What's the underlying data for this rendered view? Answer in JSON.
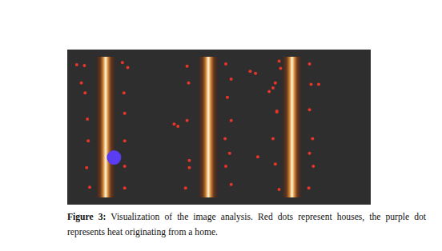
{
  "figure": {
    "label": "Figure 3:",
    "caption": "Visualization of the image analysis. Red dots represent houses, the purple dot represents heat originating from a home."
  },
  "chart_data": {
    "type": "scatter",
    "tick_labels": false,
    "grid": false,
    "xlim": [
      0,
      380
    ],
    "ylim": [
      194,
      0
    ],
    "heat_streaks": [
      41,
      176,
      286
    ],
    "series": [
      {
        "color": "#e8352a",
        "marker": "dot",
        "x": [
          3,
          13,
          9,
          14,
          17,
          18,
          16,
          20,
          63,
          70,
          65,
          66,
          66,
          66,
          66,
          131,
          136,
          148,
          150,
          148,
          151,
          151,
          146,
          199,
          206,
          201,
          206,
          198,
          204,
          199,
          206,
          231,
          238,
          241,
          256,
          261,
          266,
          269,
          271,
          264,
          266,
          261,
          264,
          269,
          309,
          311,
          321,
          309,
          313,
          309,
          314,
          308
        ],
        "y": [
          11,
          12,
          36,
          50,
          86,
          116,
          153,
          180,
          8,
          15,
          50,
          78,
          116,
          151,
          181,
          93,
          96,
          13,
          36,
          88,
          143,
          153,
          181,
          10,
          31,
          56,
          88,
          113,
          133,
          151,
          176,
          20,
          23,
          138,
          48,
          43,
          75,
          6,
          16,
          36,
          76,
          113,
          148,
          183,
          10,
          38,
          38,
          73,
          113,
          133,
          151,
          181
        ]
      },
      {
        "color": "#5a3cf2",
        "marker": "disc",
        "x": [
          52
        ],
        "y": [
          139
        ]
      }
    ]
  }
}
